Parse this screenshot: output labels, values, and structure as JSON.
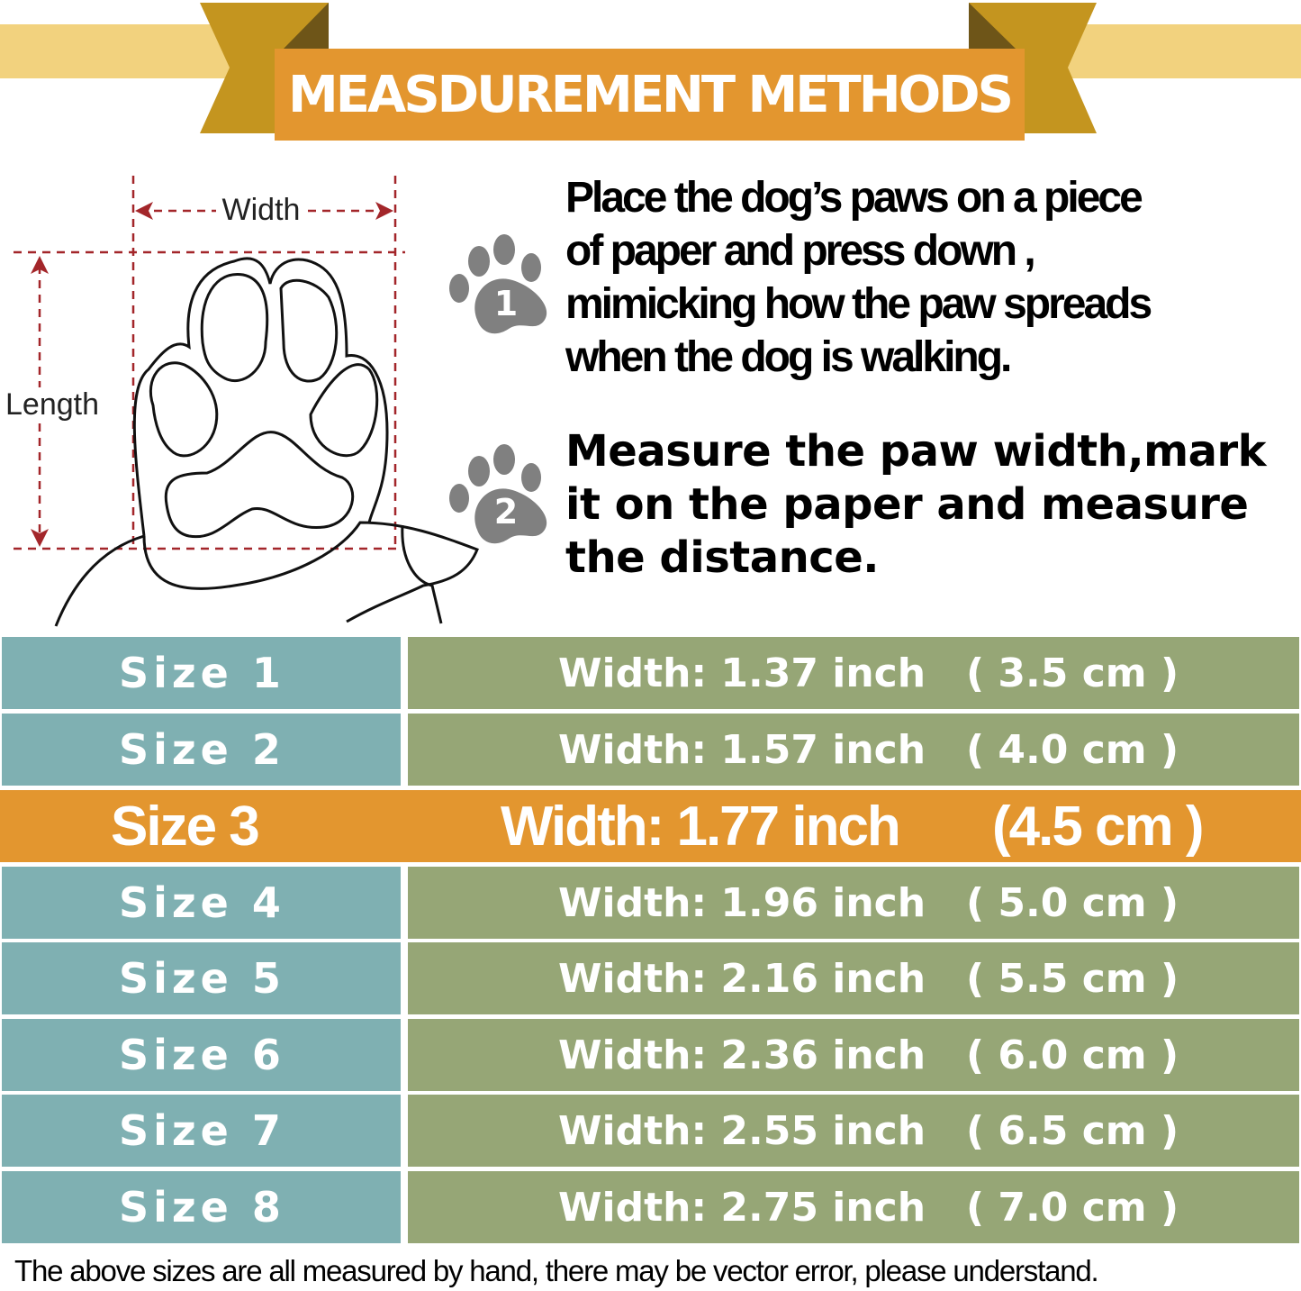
{
  "header": {
    "title": "MEASDUREMENT METHODS"
  },
  "diagram": {
    "width_label": "Width",
    "length_label": "Length"
  },
  "steps": [
    {
      "number": "1",
      "lines": [
        "Place the dog’s paws on a piece",
        "of paper and press down ,",
        "mimicking how the paw spreads",
        "when the dog is walking."
      ]
    },
    {
      "number": "2",
      "lines": [
        "Measure the paw width,mark",
        "it on the paper and measure",
        "the distance."
      ]
    }
  ],
  "size_table": {
    "highlight_index": 2,
    "rows": [
      {
        "size": "Size 1",
        "width": "Width:  1.37 inch",
        "cm": "( 3.5 cm )"
      },
      {
        "size": "Size 2",
        "width": "Width:  1.57 inch",
        "cm": "( 4.0 cm )"
      },
      {
        "size": "Size 3",
        "width": "Width:  1.77 inch",
        "cm": "(4.5 cm )"
      },
      {
        "size": "Size 4",
        "width": "Width:  1.96 inch",
        "cm": "( 5.0 cm )"
      },
      {
        "size": "Size 5",
        "width": "Width:  2.16 inch",
        "cm": "( 5.5 cm )"
      },
      {
        "size": "Size 6",
        "width": "Width:  2.36 inch",
        "cm": "( 6.0 cm )"
      },
      {
        "size": "Size 7",
        "width": "Width:  2.55 inch",
        "cm": "( 6.5 cm )"
      },
      {
        "size": "Size 8",
        "width": "Width:  2.75 inch",
        "cm": "( 7.0 cm )"
      }
    ]
  },
  "footer": {
    "note": "The above sizes are all measured by hand, there may be vector error, please understand."
  },
  "colors": {
    "banner": "#e3962f",
    "ribbon": "#c4951f",
    "band": "#f2d27e",
    "size_cell": "#7fb0b2",
    "width_cell": "#96a676",
    "highlight": "#e3962f",
    "guide": "#a3262a",
    "paw_icon": "#808080"
  }
}
